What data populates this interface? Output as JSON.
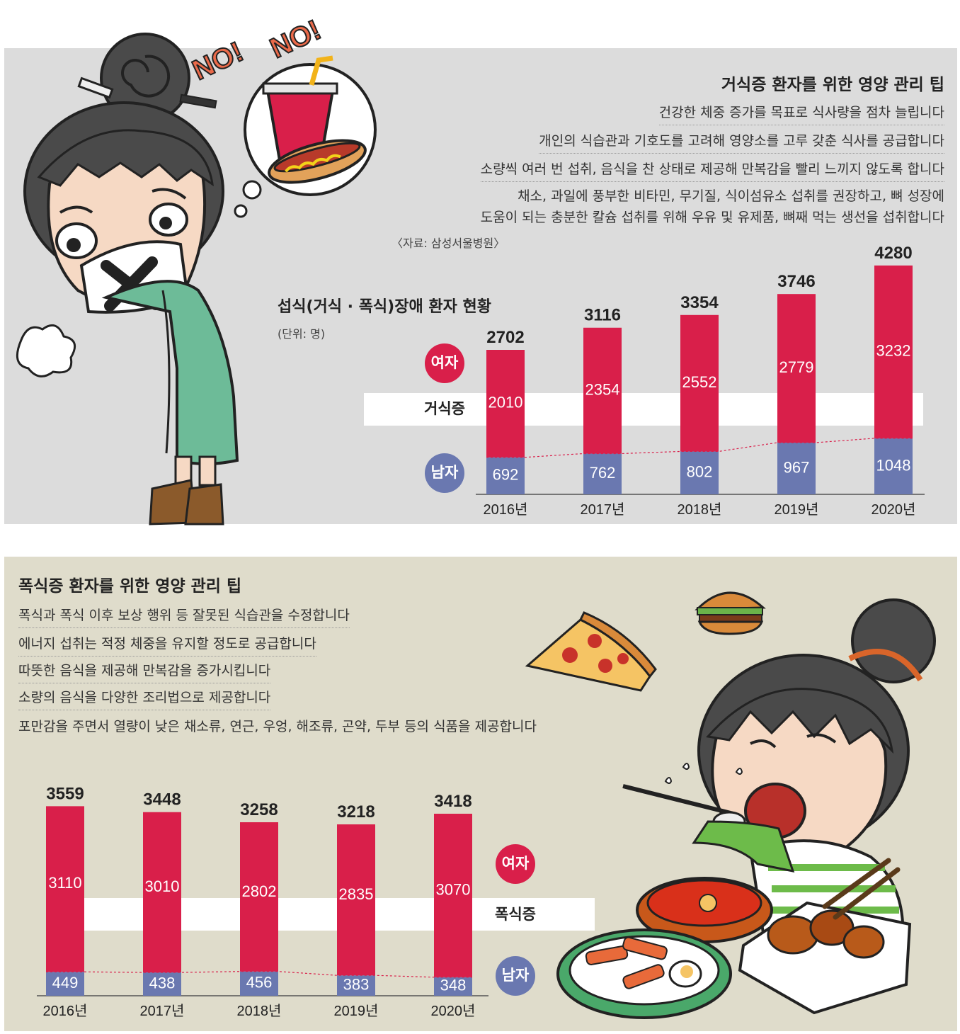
{
  "anorexia": {
    "tips_title": "거식증 환자를 위한 영양 관리 팁",
    "tips": [
      "건강한 체중 증가를 목표로 식사량을 점차 늘립니다",
      "개인의 식습관과 기호도를 고려해 영양소를 고루 갖춘 식사를 공급합니다",
      "소량씩 여러 번 섭취, 음식을 찬 상태로 제공해 만복감을 빨리 느끼지 않도록 합니다",
      "채소, 과일에 풍부한 비타민, 무기질, 식이섬유소 섭취를 권장하고, 뼈 성장에",
      "도움이 되는 충분한 칼슘 섭취를 위해 우유 및 유제품, 뼈째 먹는 생선을 섭취합니다"
    ],
    "source": "〈자료: 삼성서울병원〉",
    "speech": [
      "NO!",
      "NO!"
    ]
  },
  "bulimia": {
    "tips_title": "폭식증 환자를 위한 영양 관리 팁",
    "tips": [
      "폭식과 폭식 이후 보상 행위 등 잘못된 식습관을 수정합니다",
      "에너지 섭취는 적정 체중을 유지할 정도로 공급합니다",
      "따뜻한 음식을 제공해 만복감을 증가시킵니다",
      "소량의 음식을 다양한 조리법으로 제공합니다",
      "포만감을 주면서 열량이 낮은 채소류, 연근, 우엉, 해조류, 곤약, 두부 등의 식품을 제공합니다"
    ]
  },
  "chart_header": {
    "title": "섭식(거식 · 폭식)장애 환자 현황",
    "unit": "(단위: 명)"
  },
  "colors": {
    "female": "#d91f4a",
    "male": "#6a78b0",
    "top_bg": "#dcdcdc",
    "bottom_bg": "#dfdccb"
  },
  "chart_data": [
    {
      "type": "bar",
      "stacked": true,
      "name": "거식증",
      "categories": [
        "2016년",
        "2017년",
        "2018년",
        "2019년",
        "2020년"
      ],
      "series": [
        {
          "name": "남자",
          "values": [
            692,
            762,
            802,
            967,
            1048
          ],
          "color": "#6a78b0"
        },
        {
          "name": "여자",
          "values": [
            2010,
            2354,
            2552,
            2779,
            3232
          ],
          "color": "#d91f4a"
        }
      ],
      "totals": [
        2702,
        3116,
        3354,
        3746,
        4280
      ],
      "legend": [
        "여자",
        "남자"
      ],
      "label": "거식증"
    },
    {
      "type": "bar",
      "stacked": true,
      "name": "폭식증",
      "categories": [
        "2016년",
        "2017년",
        "2018년",
        "2019년",
        "2020년"
      ],
      "series": [
        {
          "name": "남자",
          "values": [
            449,
            438,
            456,
            383,
            348
          ],
          "color": "#6a78b0"
        },
        {
          "name": "여자",
          "values": [
            3110,
            3010,
            2802,
            2835,
            3070
          ],
          "color": "#d91f4a"
        }
      ],
      "totals": [
        3559,
        3448,
        3258,
        3218,
        3418
      ],
      "legend": [
        "여자",
        "남자"
      ],
      "label": "폭식증"
    }
  ]
}
